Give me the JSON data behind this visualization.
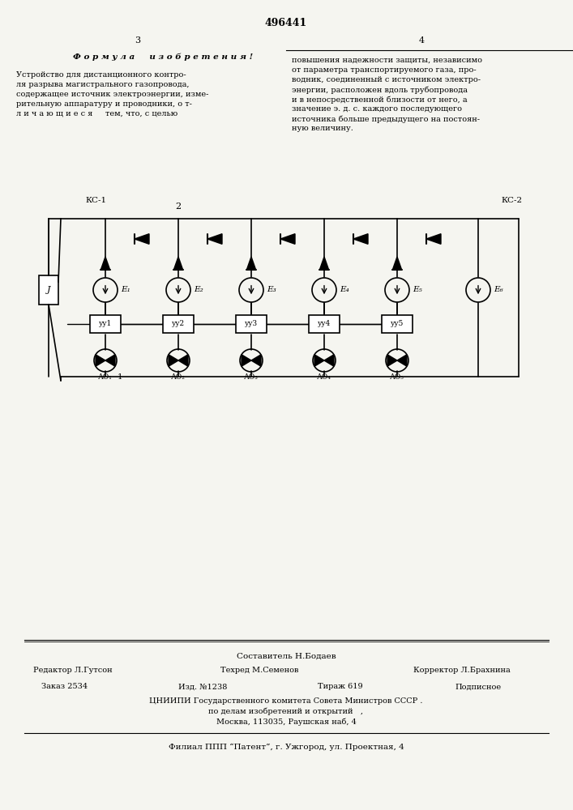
{
  "title": "496441",
  "page_left": "3",
  "page_right": "4",
  "formula_text": "Ф о р м у л а     и з о б р е т е н и я !",
  "right_text_lines": [
    "повышения надежности защиты, независимо",
    "от параметра транспортируемого газа, про-",
    "водник, соединенный с источником электро-",
    "энергии, расположен вдоль трубопровода",
    "и в непосредственной близости от него, а",
    "значение э. д. с. каждого последующего",
    "источника больше предыдущего на постоян-",
    "ную величину."
  ],
  "left_text_lines": [
    "Устройство для дистанционного контро-",
    "ля разрыва магистрального газопровода,",
    "содержащее источник электроэнергии, изме-",
    "рительную аппаратуру и проводники, о т-",
    "л и ч а ю щ и е с я     тем, что, с целью"
  ],
  "bottom_text": {
    "sostavitel": "Составитель Н.Бодаев",
    "redaktor": "Редактор Л.Гутсон",
    "tehred": "Техред М.Семенов",
    "korrektor": "Корректор Л.Брахнина",
    "zakaz": "Заказ 2534",
    "izd": "Изд. №1238",
    "tirazh": "Тираж 619",
    "podpisnoe": "Подписное",
    "tsniipri": "ЦНИИПИ Государственного комитета Совета Министров СССР .",
    "podel": "по делам изобретений и открытий   ,",
    "moskva": "Москва, 113035, Раушская наб, 4",
    "filial": "Филиал ППП “Патент”, г. Ужгород, ул. Проектная, 4"
  },
  "bg_color": "#f5f5f0"
}
